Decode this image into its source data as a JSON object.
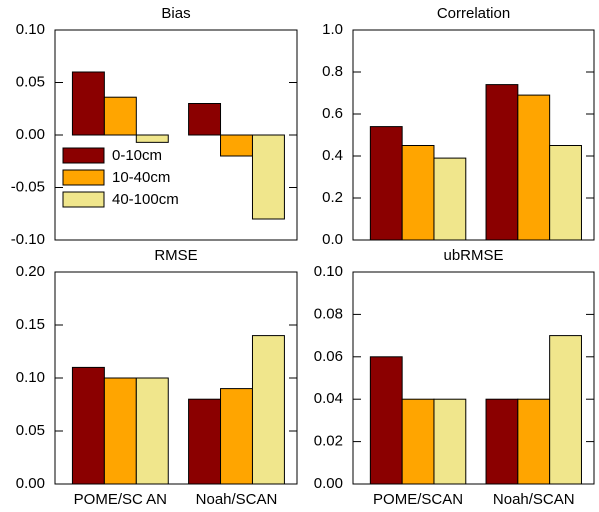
{
  "chart_data": [
    {
      "type": "bar",
      "title": "Bias",
      "categories": [
        null,
        null
      ],
      "series": [
        {
          "name": "0-10cm",
          "color": "#8b0000",
          "values": [
            0.06,
            0.03
          ]
        },
        {
          "name": "10-40cm",
          "color": "#ffa500",
          "values": [
            0.036,
            -0.02
          ]
        },
        {
          "name": "40-100cm",
          "color": "#f0e68c",
          "values": [
            -0.007,
            -0.08
          ]
        }
      ],
      "ylim": [
        -0.1,
        0.1
      ],
      "yticks": [
        {
          "value": -0.1,
          "label": "-0.10"
        },
        {
          "value": -0.05,
          "label": "-0.05"
        },
        {
          "value": 0,
          "label": "0.00"
        },
        {
          "value": 0.05,
          "label": "0.05"
        },
        {
          "value": 0.1,
          "label": "0.10"
        }
      ],
      "legend": "center left"
    },
    {
      "type": "bar",
      "title": "Correlation",
      "categories": [
        null,
        null
      ],
      "series": [
        {
          "color": "#8b0000",
          "values": [
            0.54,
            0.74
          ]
        },
        {
          "color": "#ffa500",
          "values": [
            0.45,
            0.69
          ]
        },
        {
          "color": "#f0e68c",
          "values": [
            0.39,
            0.45
          ]
        }
      ],
      "ylim": [
        0,
        1
      ],
      "yticks": [
        {
          "value": 0,
          "label": "0.0"
        },
        {
          "value": 0.2,
          "label": "0.2"
        },
        {
          "value": 0.4,
          "label": "0.4"
        },
        {
          "value": 0.6,
          "label": "0.6"
        },
        {
          "value": 0.8,
          "label": "0.8"
        },
        {
          "value": 1,
          "label": "1.0"
        }
      ]
    },
    {
      "type": "bar",
      "title": "RMSE",
      "categories": [
        "POME/SC AN",
        "Noah/SCAN"
      ],
      "series": [
        {
          "color": "#8b0000",
          "values": [
            0.11,
            0.08
          ]
        },
        {
          "color": "#ffa500",
          "values": [
            0.1,
            0.09
          ]
        },
        {
          "color": "#f0e68c",
          "values": [
            0.1,
            0.14
          ]
        }
      ],
      "ylim": [
        0,
        0.2
      ],
      "yticks": [
        {
          "value": 0,
          "label": "0.00"
        },
        {
          "value": 0.05,
          "label": "0.05"
        },
        {
          "value": 0.1,
          "label": "0.10"
        },
        {
          "value": 0.15,
          "label": "0.15"
        },
        {
          "value": 0.2,
          "label": "0.20"
        }
      ]
    },
    {
      "type": "bar",
      "title": "ubRMSE",
      "categories": [
        "POME/SCAN",
        "Noah/SCAN"
      ],
      "series": [
        {
          "color": "#8b0000",
          "values": [
            0.06,
            0.04
          ]
        },
        {
          "color": "#ffa500",
          "values": [
            0.04,
            0.04
          ]
        },
        {
          "color": "#f0e68c",
          "values": [
            0.04,
            0.07
          ]
        }
      ],
      "ylim": [
        0,
        0.1
      ],
      "yticks": [
        {
          "value": 0,
          "label": "0.00"
        },
        {
          "value": 0.02,
          "label": "0.02"
        },
        {
          "value": 0.04,
          "label": "0.04"
        },
        {
          "value": 0.06,
          "label": "0.06"
        },
        {
          "value": 0.08,
          "label": "0.08"
        },
        {
          "value": 0.1,
          "label": "0.10"
        }
      ]
    }
  ]
}
